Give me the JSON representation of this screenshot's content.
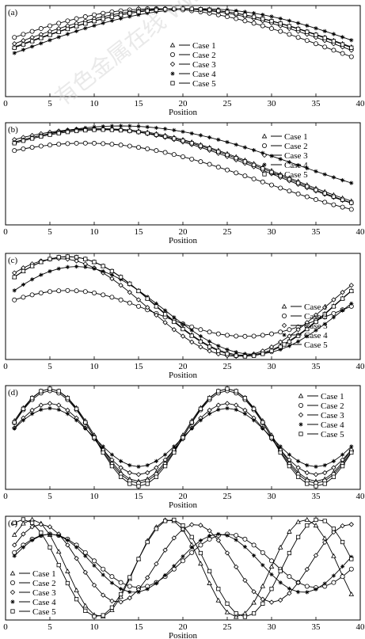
{
  "watermark": "有色金属在线 www.cnnmol.com",
  "chart_data": [
    {
      "type": "line",
      "panel_label": "(a)",
      "xlabel": "Position",
      "xlim": [
        0,
        40
      ],
      "xticks": [
        0,
        5,
        10,
        15,
        20,
        25,
        30,
        35,
        40
      ],
      "legend_position": "right-center",
      "series": [
        {
          "name": "Case 1",
          "marker": "triangle",
          "wave": {
            "cycles": 0.5,
            "peak": 20,
            "min": 0.02,
            "max": 1.0
          }
        },
        {
          "name": "Case 2",
          "marker": "circle",
          "wave": {
            "cycles": 0.5,
            "peak": 17,
            "min": 0.02,
            "max": 1.0
          }
        },
        {
          "name": "Case 3",
          "marker": "diamond",
          "wave": {
            "cycles": 0.5,
            "peak": 19,
            "min": 0.02,
            "max": 1.0
          }
        },
        {
          "name": "Case 4",
          "marker": "star",
          "wave": {
            "cycles": 0.5,
            "peak": 22,
            "min": 0.03,
            "max": 1.0
          }
        },
        {
          "name": "Case 5",
          "marker": "square",
          "wave": {
            "cycles": 0.5,
            "peak": 20,
            "min": 0.0,
            "max": 1.0
          }
        }
      ]
    },
    {
      "type": "line",
      "panel_label": "(b)",
      "xlabel": "Position",
      "xlim": [
        0,
        40
      ],
      "xticks": [
        0,
        5,
        10,
        15,
        20,
        25,
        30,
        35,
        40
      ],
      "legend_position": "top-right",
      "series": [
        {
          "name": "Case 1",
          "marker": "triangle",
          "wave": {
            "cycles": 0.5,
            "peak": 11,
            "min": 0.02,
            "max": 0.97
          }
        },
        {
          "name": "Case 2",
          "marker": "circle",
          "wave": {
            "cycles": 0.5,
            "peak": 9,
            "min": 0.01,
            "max": 0.82
          }
        },
        {
          "name": "Case 3",
          "marker": "diamond",
          "wave": {
            "cycles": 0.5,
            "peak": 10,
            "min": 0.03,
            "max": 0.97
          }
        },
        {
          "name": "Case 4",
          "marker": "star",
          "wave": {
            "cycles": 0.5,
            "peak": 13,
            "min": 0.18,
            "max": 1.0
          }
        },
        {
          "name": "Case 5",
          "marker": "square",
          "wave": {
            "cycles": 0.5,
            "peak": 11,
            "min": 0.0,
            "max": 0.96
          }
        }
      ]
    },
    {
      "type": "line",
      "panel_label": "(c)",
      "xlabel": "Position",
      "xlim": [
        0,
        40
      ],
      "xticks": [
        0,
        5,
        10,
        15,
        20,
        25,
        30,
        35,
        40
      ],
      "legend_position": "bottom-right",
      "series": [
        {
          "name": "Case 1",
          "marker": "triangle",
          "wave": {
            "cycles": 1,
            "peak": 7,
            "min": 0.01,
            "max": 1.0
          }
        },
        {
          "name": "Case 2",
          "marker": "circle",
          "wave": {
            "cycles": 1,
            "peak": 7,
            "min": 0.2,
            "max": 0.66
          }
        },
        {
          "name": "Case 3",
          "marker": "diamond",
          "wave": {
            "cycles": 1,
            "peak": 6,
            "min": 0.0,
            "max": 0.98
          }
        },
        {
          "name": "Case 4",
          "marker": "star",
          "wave": {
            "cycles": 1,
            "peak": 8,
            "min": 0.02,
            "max": 0.9
          }
        },
        {
          "name": "Case 5",
          "marker": "square",
          "wave": {
            "cycles": 1,
            "peak": 7,
            "min": 0.0,
            "max": 1.0
          }
        }
      ]
    },
    {
      "type": "line",
      "panel_label": "(d)",
      "xlabel": "Position",
      "xlim": [
        0,
        40
      ],
      "xticks": [
        0,
        5,
        10,
        15,
        20,
        25,
        30,
        35,
        40
      ],
      "legend_position": "top-right",
      "series": [
        {
          "name": "Case 1",
          "marker": "triangle",
          "wave": {
            "cycles": 2,
            "peak": 5,
            "min": 0.05,
            "max": 1.0
          }
        },
        {
          "name": "Case 2",
          "marker": "circle",
          "wave": {
            "cycles": 2,
            "peak": 5,
            "min": 0.03,
            "max": 0.98
          }
        },
        {
          "name": "Case 3",
          "marker": "diamond",
          "wave": {
            "cycles": 2,
            "peak": 5,
            "min": 0.12,
            "max": 0.85
          }
        },
        {
          "name": "Case 4",
          "marker": "star",
          "wave": {
            "cycles": 2,
            "peak": 5,
            "min": 0.2,
            "max": 0.8
          }
        },
        {
          "name": "Case 5",
          "marker": "square",
          "wave": {
            "cycles": 2,
            "peak": 5,
            "min": 0.0,
            "max": 1.0
          }
        }
      ]
    },
    {
      "type": "line",
      "panel_label": "(e)",
      "xlabel": "Position",
      "xlim": [
        0,
        40
      ],
      "xticks": [
        0,
        5,
        10,
        15,
        20,
        25,
        30,
        35,
        40
      ],
      "legend_position": "bottom-left",
      "series": [
        {
          "name": "Case 1",
          "marker": "triangle",
          "wave": {
            "cycles": 2.6,
            "peak": 3,
            "min": 0.0,
            "max": 1.0
          }
        },
        {
          "name": "Case 2",
          "marker": "circle",
          "wave": {
            "cycles": 2,
            "peak": 5,
            "min": 0.3,
            "max": 0.85
          }
        },
        {
          "name": "Case 3",
          "marker": "diamond",
          "wave": {
            "cycles": 2.3,
            "peak": 4,
            "min": 0.15,
            "max": 0.95
          }
        },
        {
          "name": "Case 4",
          "marker": "star",
          "wave": {
            "cycles": 2.1,
            "peak": 5,
            "min": 0.25,
            "max": 0.85
          }
        },
        {
          "name": "Case 5",
          "marker": "square",
          "wave": {
            "cycles": 2.4,
            "peak": 2,
            "min": 0.0,
            "max": 1.0
          }
        }
      ]
    }
  ]
}
